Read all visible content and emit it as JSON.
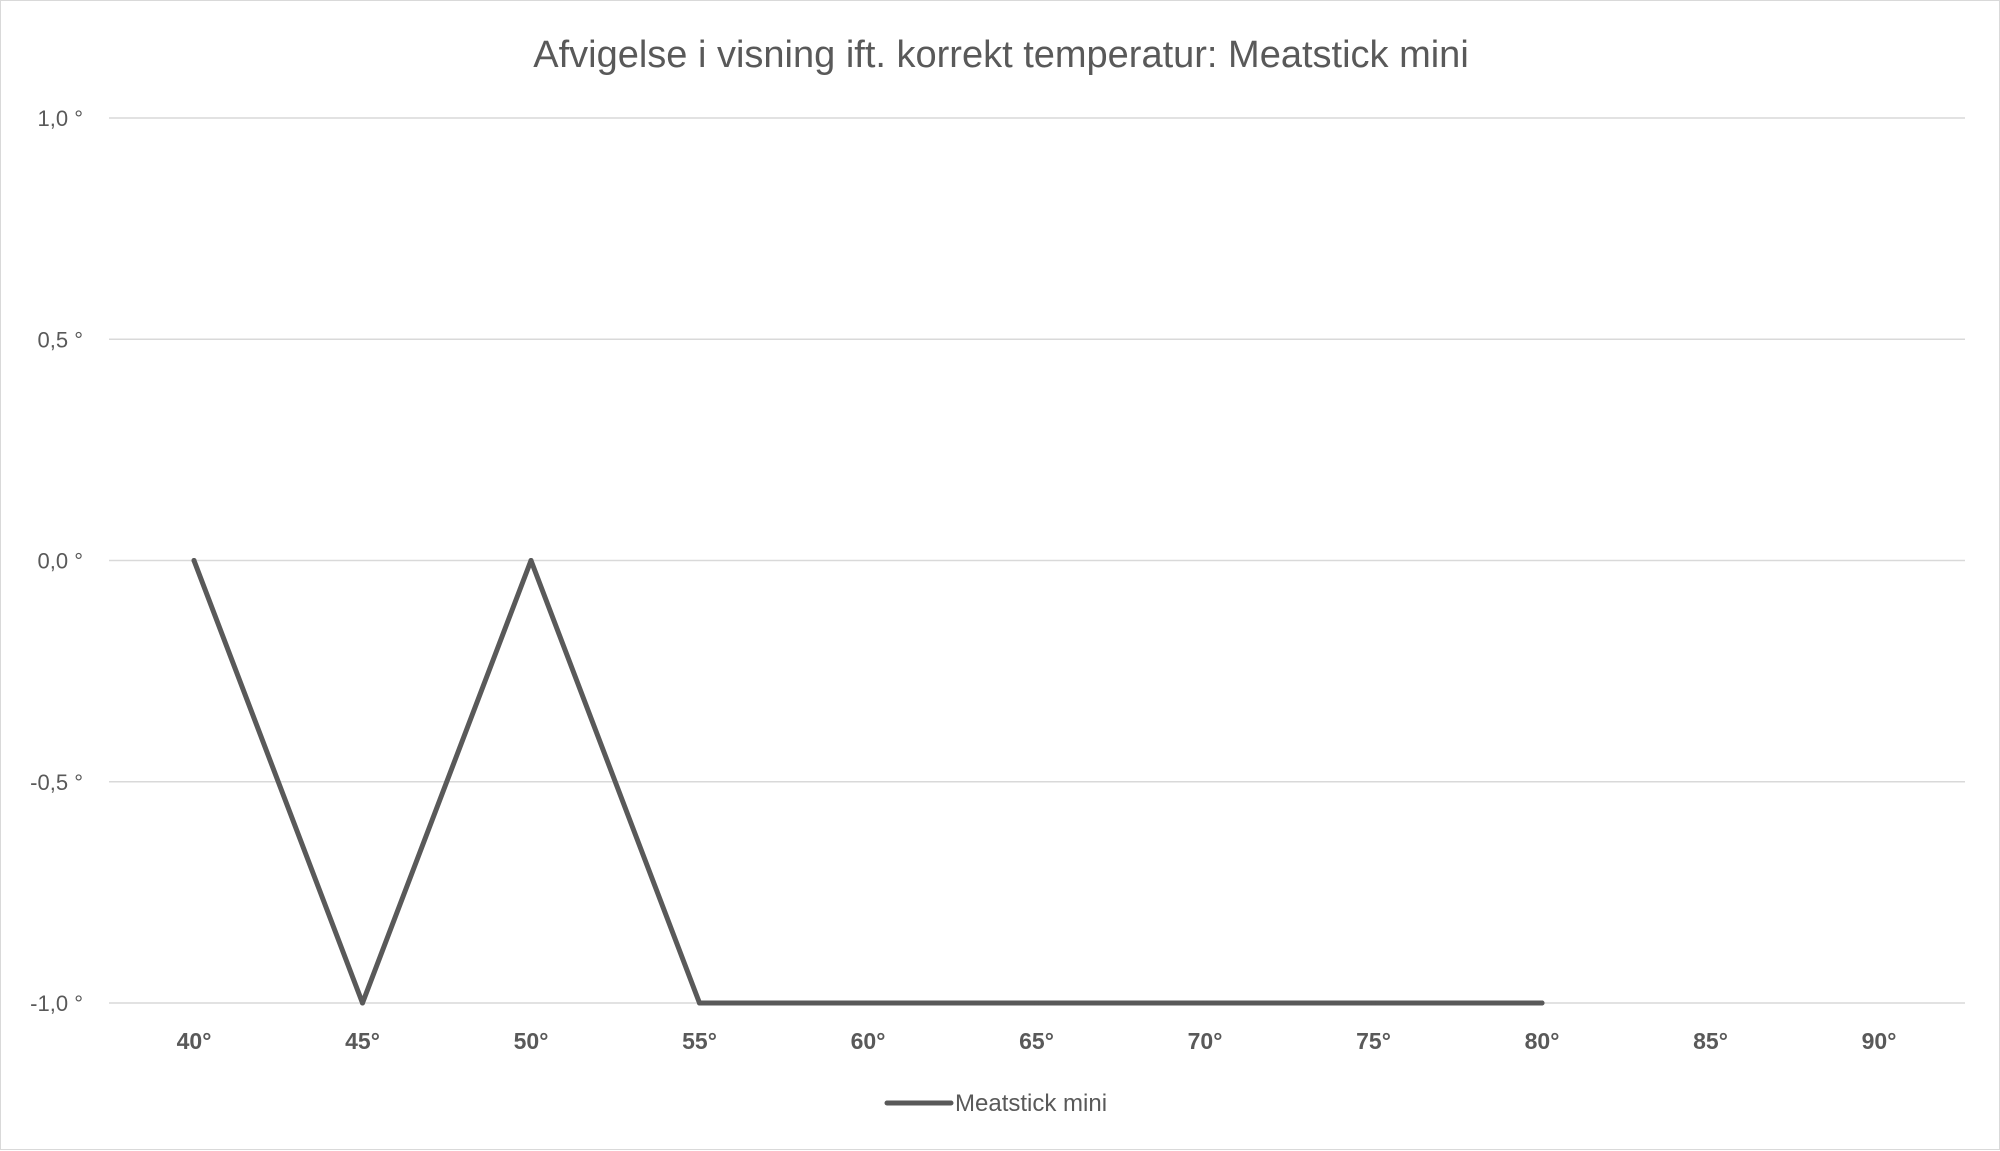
{
  "chart_data": {
    "type": "line",
    "title": "Afvigelse i visning ift. korrekt temperatur: Meatstick mini",
    "categories": [
      "40°",
      "45°",
      "50°",
      "55°",
      "60°",
      "65°",
      "70°",
      "75°",
      "80°",
      "85°",
      "90°"
    ],
    "series": [
      {
        "name": "Meatstick mini",
        "values": [
          0,
          -1,
          0,
          -1,
          -1,
          -1,
          -1,
          -1,
          -1,
          null,
          null
        ],
        "color": "#595959"
      }
    ],
    "yticks": [
      {
        "value": 1.0,
        "label": "1,0 °"
      },
      {
        "value": 0.5,
        "label": "0,5 °"
      },
      {
        "value": 0.0,
        "label": "0,0 °"
      },
      {
        "value": -0.5,
        "label": "-0,5 °"
      },
      {
        "value": -1.0,
        "label": "-1,0 °"
      }
    ],
    "ylim": [
      -1,
      1
    ],
    "grid": true,
    "legend_position": "bottom"
  }
}
